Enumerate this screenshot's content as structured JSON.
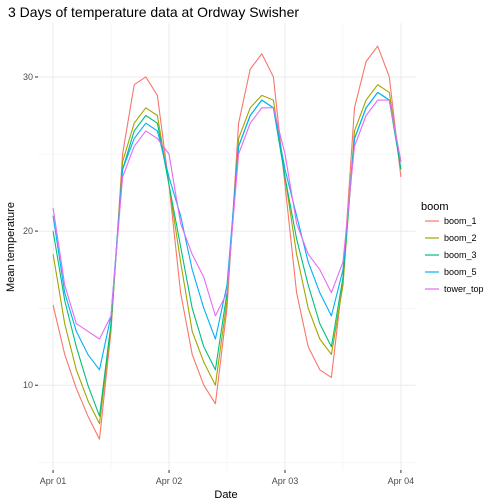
{
  "chart_data": {
    "type": "line",
    "title": "3 Days of temperature data at Ordway Swisher",
    "xlabel": "Date",
    "ylabel": "Mean temperature",
    "x_ticks": [
      "Apr 01",
      "Apr 02",
      "Apr 03",
      "Apr 04"
    ],
    "y_ticks": [
      10,
      20,
      30
    ],
    "xlim": [
      -0.13,
      3.13
    ],
    "ylim": [
      4.5,
      33.5
    ],
    "grid": true,
    "legend_title": "boom",
    "legend_position": "right",
    "x": [
      0.0,
      0.1,
      0.2,
      0.3,
      0.4,
      0.5,
      0.6,
      0.7,
      0.8,
      0.9,
      1.0,
      1.1,
      1.2,
      1.3,
      1.4,
      1.5,
      1.6,
      1.7,
      1.8,
      1.9,
      2.0,
      2.1,
      2.2,
      2.3,
      2.4,
      2.5,
      2.6,
      2.7,
      2.8,
      2.9,
      3.0
    ],
    "series": [
      {
        "name": "boom_1",
        "color": "#F8766D",
        "values": [
          15.2,
          12.0,
          9.8,
          8.0,
          6.5,
          13.5,
          25.0,
          29.5,
          30.0,
          28.8,
          23.0,
          16.0,
          12.0,
          10.0,
          8.8,
          15.0,
          27.0,
          30.5,
          31.5,
          30.0,
          23.0,
          16.0,
          12.5,
          11.0,
          10.5,
          17.0,
          28.0,
          31.0,
          32.0,
          30.0,
          23.5
        ]
      },
      {
        "name": "boom_2",
        "color": "#A3A500",
        "values": [
          18.5,
          14.0,
          11.0,
          9.0,
          7.5,
          13.8,
          24.5,
          27.0,
          28.0,
          27.5,
          23.0,
          18.0,
          13.5,
          11.5,
          10.0,
          15.5,
          26.0,
          28.0,
          28.8,
          28.5,
          23.5,
          18.5,
          15.0,
          13.0,
          12.0,
          16.5,
          26.5,
          28.5,
          29.5,
          29.0,
          24.0
        ]
      },
      {
        "name": "boom_3",
        "color": "#00BF7D",
        "values": [
          20.0,
          15.5,
          12.5,
          10.0,
          8.0,
          14.0,
          24.0,
          26.5,
          27.5,
          27.0,
          23.0,
          19.0,
          15.0,
          12.5,
          11.0,
          16.0,
          25.5,
          27.5,
          28.5,
          28.0,
          23.5,
          19.5,
          16.5,
          14.0,
          12.5,
          17.0,
          26.0,
          28.0,
          29.0,
          28.5,
          24.0
        ]
      },
      {
        "name": "boom_5",
        "color": "#00B0F6",
        "values": [
          21.0,
          16.0,
          13.5,
          12.0,
          11.0,
          14.5,
          24.0,
          26.0,
          27.0,
          26.5,
          23.5,
          21.0,
          17.5,
          15.0,
          13.0,
          16.5,
          25.5,
          27.5,
          28.5,
          28.0,
          24.0,
          21.0,
          18.0,
          16.0,
          14.5,
          17.5,
          26.0,
          28.0,
          29.0,
          28.5,
          24.5
        ]
      },
      {
        "name": "tower_top",
        "color": "#E76BF3",
        "values": [
          21.5,
          16.5,
          14.0,
          13.5,
          13.0,
          14.5,
          23.5,
          25.5,
          26.5,
          26.0,
          25.0,
          20.5,
          18.5,
          17.0,
          14.5,
          16.0,
          25.0,
          27.0,
          28.0,
          28.0,
          25.0,
          20.5,
          18.5,
          17.5,
          16.0,
          18.0,
          25.5,
          27.5,
          28.5,
          28.5,
          24.5
        ]
      }
    ]
  }
}
